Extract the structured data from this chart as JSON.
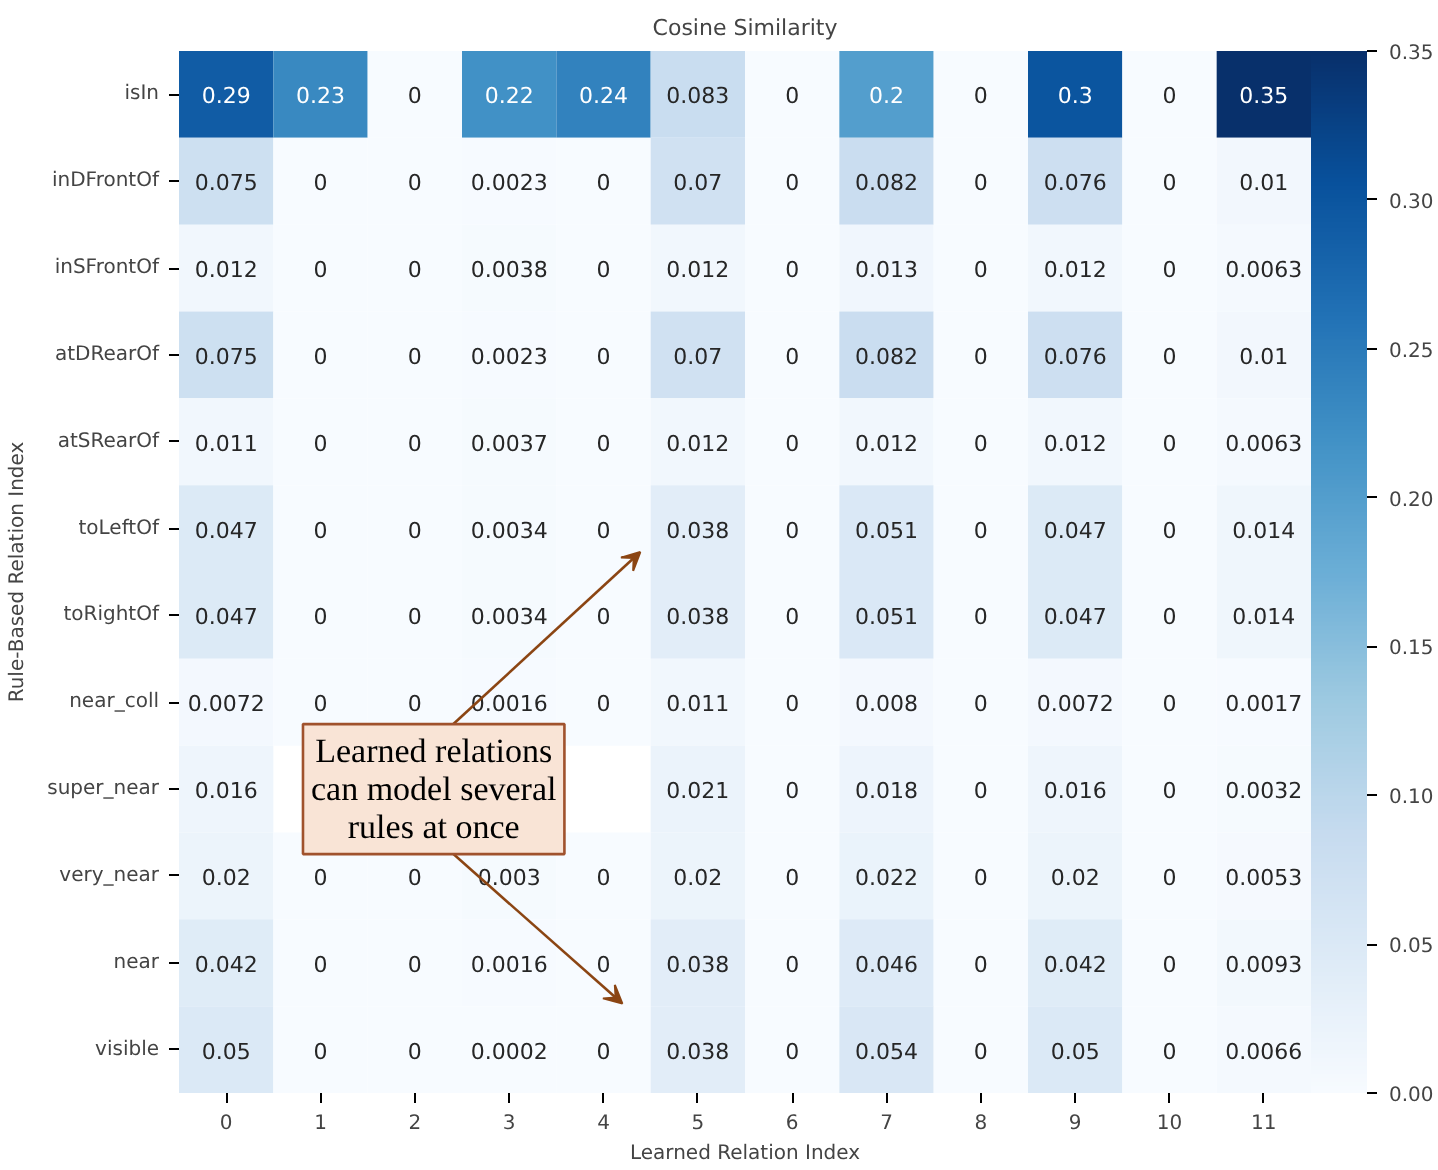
{
  "chart_data": {
    "type": "heatmap",
    "title": "Cosine Similarity",
    "xlabel": "Learned Relation Index",
    "ylabel": "Rule-Based Relation Index",
    "categories": [
      "0",
      "1",
      "2",
      "3",
      "4",
      "5",
      "6",
      "7",
      "8",
      "9",
      "10",
      "11"
    ],
    "y_categories": [
      "isIn",
      "inDFrontOf",
      "inSFrontOf",
      "atDRearOf",
      "atSRearOf",
      "toLeftOf",
      "toRightOf",
      "near_coll",
      "super_near",
      "very_near",
      "near",
      "visible"
    ],
    "cells": [
      [
        0.29,
        0.23,
        0,
        0.22,
        0.24,
        0.083,
        0,
        0.2,
        0,
        0.3,
        0,
        0.35
      ],
      [
        0.075,
        0,
        0,
        0.0023,
        0,
        0.07,
        0,
        0.082,
        0,
        0.076,
        0,
        0.01
      ],
      [
        0.012,
        0,
        0,
        0.0038,
        0,
        0.012,
        0,
        0.013,
        0,
        0.012,
        0,
        0.0063
      ],
      [
        0.075,
        0,
        0,
        0.0023,
        0,
        0.07,
        0,
        0.082,
        0,
        0.076,
        0,
        0.01
      ],
      [
        0.011,
        0,
        0,
        0.0037,
        0,
        0.012,
        0,
        0.012,
        0,
        0.012,
        0,
        0.0063
      ],
      [
        0.047,
        0,
        0,
        0.0034,
        0,
        0.038,
        0,
        0.051,
        0,
        0.047,
        0,
        0.014
      ],
      [
        0.047,
        0,
        0,
        0.0034,
        0,
        0.038,
        0,
        0.051,
        0,
        0.047,
        0,
        0.014
      ],
      [
        0.0072,
        0,
        0,
        0.0016,
        0,
        0.011,
        0,
        0.008,
        0,
        0.0072,
        0,
        0.0017
      ],
      [
        0.016,
        null,
        null,
        null,
        null,
        0.021,
        0,
        0.018,
        0,
        0.016,
        0,
        0.0032
      ],
      [
        0.02,
        0,
        0,
        0.003,
        0,
        0.02,
        0,
        0.022,
        0,
        0.02,
        0,
        0.0053
      ],
      [
        0.042,
        0,
        0,
        0.0016,
        0,
        0.038,
        0,
        0.046,
        0,
        0.042,
        0,
        0.0093
      ],
      [
        0.05,
        0,
        0,
        0.0002,
        0,
        0.038,
        0,
        0.054,
        0,
        0.05,
        0,
        0.0066
      ]
    ],
    "data_labels": true,
    "clim": [
      0,
      0.35
    ],
    "cticks": [
      {
        "value": 0,
        "label": "0.00"
      },
      {
        "value": 0.05,
        "label": "0.05"
      },
      {
        "value": 0.1,
        "label": "0.10"
      },
      {
        "value": 0.15,
        "label": "0.15"
      },
      {
        "value": 0.2,
        "label": "0.20"
      },
      {
        "value": 0.25,
        "label": "0.25"
      },
      {
        "value": 0.3,
        "label": "0.30"
      },
      {
        "value": 0.35,
        "label": "0.35"
      }
    ],
    "annotations": [
      "Learned relations can model several rules at once"
    ]
  }
}
